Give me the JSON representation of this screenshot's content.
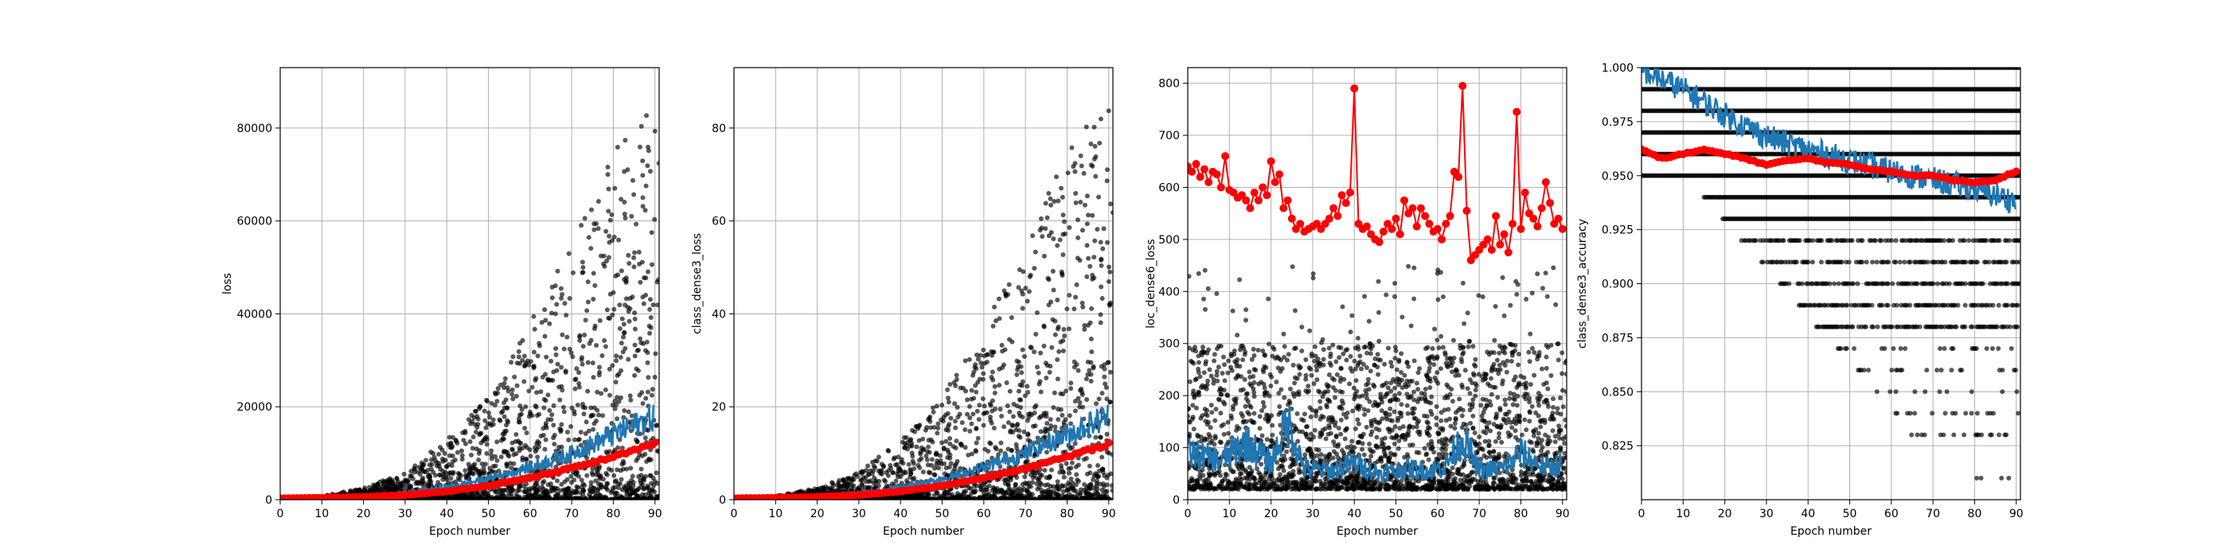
{
  "figure": {
    "colors": {
      "scatter": "#000000",
      "series_blue": "#1f77b4",
      "series_red": "#ff0000",
      "grid": "#b0b0b0"
    }
  },
  "chart_data": [
    {
      "type": "scatter",
      "xlabel": "Epoch number",
      "ylabel": "loss",
      "xlim": [
        0,
        91
      ],
      "ylim": [
        0,
        93000
      ],
      "xticks": [
        0,
        10,
        20,
        30,
        40,
        50,
        60,
        70,
        80,
        90
      ],
      "yticks": [
        0,
        20000,
        40000,
        60000,
        80000
      ],
      "ytick_labels": [
        "0",
        "20000",
        "40000",
        "60000",
        "80000"
      ],
      "grid": true,
      "series": [
        {
          "kind": "scatter",
          "color": "#000000",
          "note_envelope": {
            "x": [
              0,
              10,
              20,
              30,
              40,
              50,
              60,
              70,
              80,
              90
            ],
            "max": [
              300,
              800,
              2500,
              6000,
              13000,
              22000,
              38000,
              55000,
              75000,
              88000
            ]
          }
        },
        {
          "kind": "line",
          "color": "#1f77b4",
          "x": [
            0,
            10,
            20,
            30,
            40,
            50,
            60,
            70,
            80,
            90
          ],
          "y": [
            500,
            600,
            900,
            1500,
            2700,
            4500,
            7000,
            10000,
            14000,
            18000
          ]
        },
        {
          "kind": "line-markers",
          "color": "#ff0000",
          "x": [
            0,
            10,
            20,
            30,
            40,
            50,
            60,
            70,
            80,
            90
          ],
          "y": [
            300,
            400,
            600,
            1000,
            1800,
            3000,
            4700,
            6800,
            9200,
            12000
          ]
        }
      ]
    },
    {
      "type": "scatter",
      "xlabel": "Epoch number",
      "ylabel": "class_dense3_loss",
      "xlim": [
        0,
        91
      ],
      "ylim": [
        0,
        93
      ],
      "xticks": [
        0,
        10,
        20,
        30,
        40,
        50,
        60,
        70,
        80,
        90
      ],
      "yticks": [
        0,
        20,
        40,
        60,
        80
      ],
      "ytick_labels": [
        "0",
        "20",
        "40",
        "60",
        "80"
      ],
      "grid": true,
      "series": [
        {
          "kind": "scatter",
          "color": "#000000",
          "note_envelope": {
            "x": [
              0,
              10,
              20,
              30,
              40,
              50,
              60,
              70,
              80,
              90
            ],
            "max": [
              0.3,
              0.8,
              2.5,
              6,
              13,
              22,
              38,
              55,
              75,
              88
            ]
          }
        },
        {
          "kind": "line",
          "color": "#1f77b4",
          "x": [
            0,
            10,
            20,
            30,
            40,
            50,
            60,
            70,
            80,
            90
          ],
          "y": [
            0.5,
            0.6,
            0.9,
            1.5,
            2.7,
            4.5,
            7,
            10,
            14,
            18
          ]
        },
        {
          "kind": "line-markers",
          "color": "#ff0000",
          "x": [
            0,
            10,
            20,
            30,
            40,
            50,
            60,
            70,
            80,
            90
          ],
          "y": [
            0.3,
            0.4,
            0.6,
            1.0,
            1.8,
            3.0,
            4.7,
            6.8,
            9.2,
            12
          ]
        }
      ]
    },
    {
      "type": "scatter",
      "xlabel": "Epoch number",
      "ylabel": "loc_dense6_loss",
      "xlim": [
        0,
        91
      ],
      "ylim": [
        0,
        830
      ],
      "xticks": [
        0,
        10,
        20,
        30,
        40,
        50,
        60,
        70,
        80,
        90
      ],
      "yticks": [
        0,
        100,
        200,
        300,
        400,
        500,
        600,
        700,
        800
      ],
      "ytick_labels": [
        "0",
        "100",
        "200",
        "300",
        "400",
        "500",
        "600",
        "700",
        "800"
      ],
      "grid": true,
      "series": [
        {
          "kind": "scatter",
          "color": "#000000",
          "note_band": [
            20,
            300
          ]
        },
        {
          "kind": "line",
          "color": "#1f77b4",
          "x": [
            0,
            8,
            14,
            20,
            24,
            28,
            34,
            40,
            46,
            52,
            58,
            62,
            66,
            70,
            76,
            80,
            86,
            90
          ],
          "y": [
            90,
            75,
            110,
            70,
            150,
            60,
            55,
            70,
            50,
            60,
            55,
            65,
            120,
            55,
            60,
            90,
            60,
            70
          ]
        },
        {
          "kind": "line-markers",
          "color": "#ff0000",
          "x": [
            0,
            1,
            2,
            3,
            4,
            5,
            6,
            7,
            8,
            9,
            10,
            11,
            12,
            13,
            14,
            15,
            16,
            17,
            18,
            19,
            20,
            21,
            22,
            23,
            24,
            25,
            26,
            27,
            28,
            29,
            30,
            31,
            32,
            33,
            34,
            35,
            36,
            37,
            38,
            39,
            40,
            41,
            42,
            43,
            44,
            45,
            46,
            47,
            48,
            49,
            50,
            51,
            52,
            53,
            54,
            55,
            56,
            57,
            58,
            59,
            60,
            61,
            62,
            63,
            64,
            65,
            66,
            67,
            68,
            69,
            70,
            71,
            72,
            73,
            74,
            75,
            76,
            77,
            78,
            79,
            80,
            81,
            82,
            83,
            84,
            85,
            86,
            87,
            88,
            89,
            90
          ],
          "y": [
            640,
            630,
            645,
            620,
            635,
            610,
            630,
            625,
            600,
            660,
            595,
            590,
            580,
            585,
            575,
            560,
            590,
            575,
            600,
            585,
            650,
            610,
            625,
            560,
            575,
            540,
            520,
            530,
            515,
            520,
            525,
            530,
            520,
            530,
            540,
            560,
            545,
            585,
            570,
            590,
            790,
            530,
            520,
            525,
            510,
            500,
            495,
            515,
            530,
            520,
            540,
            510,
            575,
            550,
            560,
            525,
            560,
            545,
            530,
            515,
            520,
            500,
            530,
            545,
            630,
            620,
            795,
            555,
            460,
            470,
            480,
            490,
            500,
            480,
            545,
            490,
            510,
            475,
            530,
            745,
            520,
            590,
            550,
            540,
            525,
            560,
            610,
            570,
            530,
            540,
            520
          ]
        }
      ]
    },
    {
      "type": "scatter",
      "xlabel": "Epoch number",
      "ylabel": "class_dense3_accuracy",
      "xlim": [
        0,
        91
      ],
      "ylim": [
        0.8,
        1.0
      ],
      "xticks": [
        0,
        10,
        20,
        30,
        40,
        50,
        60,
        70,
        80,
        90
      ],
      "yticks": [
        0.825,
        0.85,
        0.875,
        0.9,
        0.925,
        0.95,
        0.975,
        1.0
      ],
      "ytick_labels": [
        "0.825",
        "0.850",
        "0.875",
        "0.900",
        "0.925",
        "0.950",
        "0.975",
        "1.000"
      ],
      "grid": true,
      "series": [
        {
          "kind": "scatter",
          "color": "#000000",
          "note_levels": [
            1.0,
            0.99,
            0.98,
            0.97,
            0.96,
            0.95,
            0.94,
            0.93,
            0.92,
            0.91,
            0.9,
            0.89,
            0.88,
            0.87,
            0.86,
            0.85,
            0.84,
            0.83,
            0.81
          ]
        },
        {
          "kind": "line",
          "color": "#1f77b4",
          "x": [
            0,
            10,
            20,
            30,
            40,
            50,
            60,
            70,
            80,
            90
          ],
          "y": [
            0.999,
            0.99,
            0.978,
            0.968,
            0.962,
            0.957,
            0.952,
            0.948,
            0.944,
            0.938
          ]
        },
        {
          "kind": "line-markers",
          "color": "#ff0000",
          "x": [
            0,
            5,
            10,
            15,
            20,
            25,
            30,
            35,
            40,
            45,
            50,
            55,
            60,
            65,
            70,
            75,
            80,
            85,
            90
          ],
          "y": [
            0.962,
            0.958,
            0.96,
            0.962,
            0.96,
            0.958,
            0.955,
            0.957,
            0.958,
            0.956,
            0.955,
            0.953,
            0.952,
            0.95,
            0.95,
            0.948,
            0.947,
            0.948,
            0.952
          ]
        }
      ]
    }
  ]
}
